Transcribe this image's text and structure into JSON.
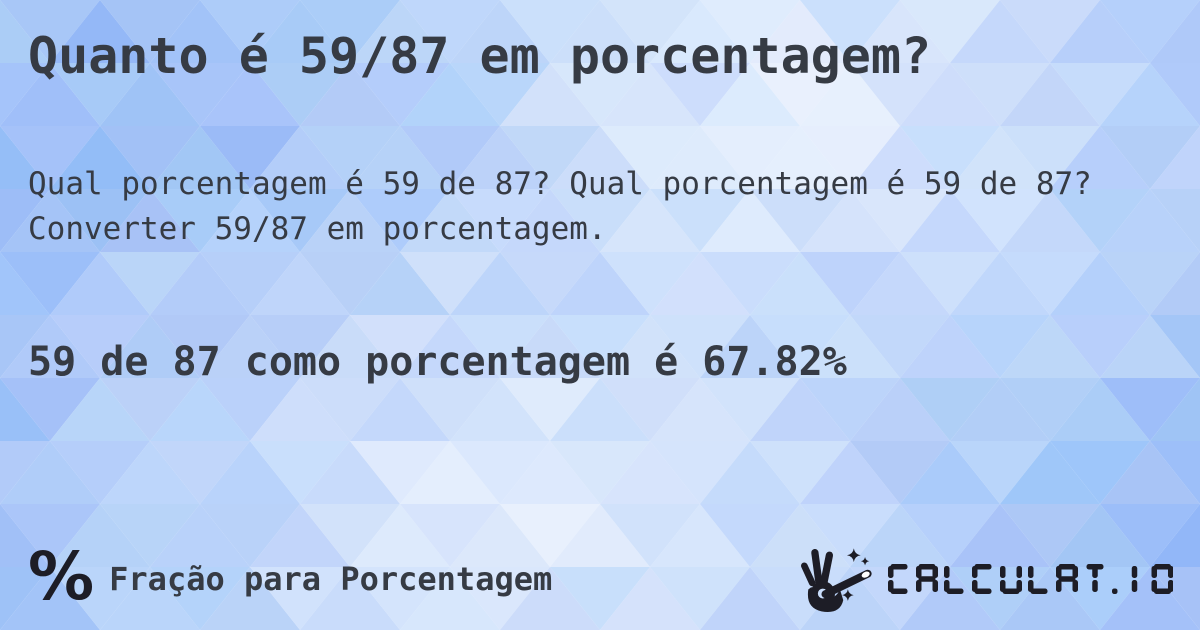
{
  "page": {
    "title": "Quanto é 59/87 em porcentagem?",
    "description": "Qual porcentagem é 59 de 87? Qual porcentagem é 59 de 87? Converter 59/87 em porcentagem.",
    "answer": "59 de 87 como porcentagem é 67.82%"
  },
  "footer": {
    "category": {
      "icon_glyph": "%",
      "label": "Fração para Porcentagem"
    },
    "brand": {
      "icon": "magic-wand-hand-icon",
      "wordmark": "CALCULAT.IO"
    }
  },
  "colors": {
    "text_dark": "#363b44",
    "logo_dark": "#1d1d26",
    "bg_blue": "#a9c9f5",
    "bg_light": "#f7fafe"
  }
}
